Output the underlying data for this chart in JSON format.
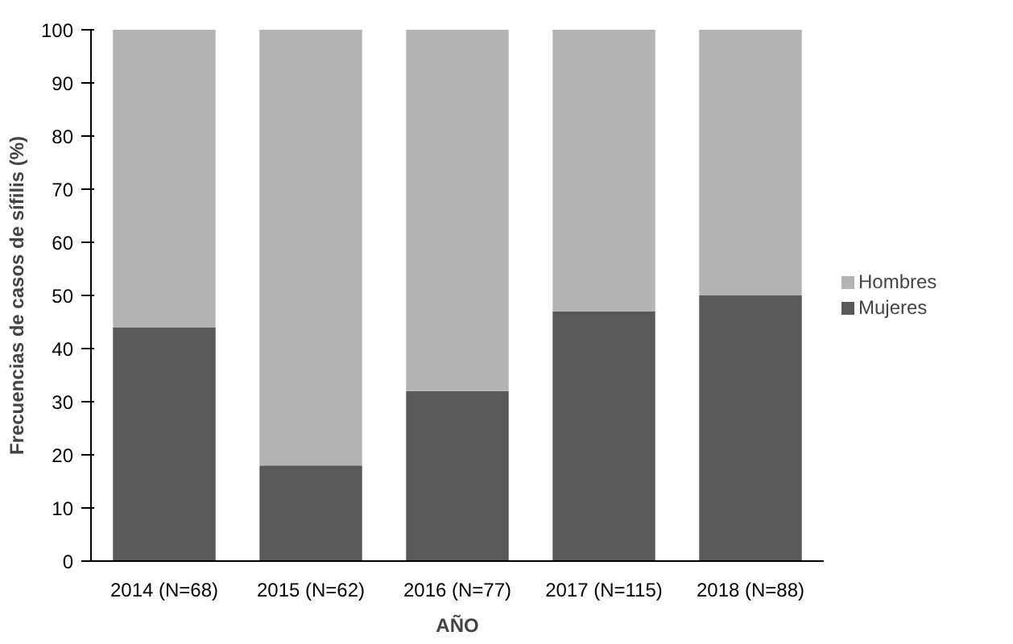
{
  "chart_data": {
    "type": "bar",
    "stacked": true,
    "xlabel": "AÑO",
    "ylabel": "Frecuencias de casos de sífilis (%)",
    "categories": [
      "2014 (N=68)",
      "2015 (N=62)",
      "2016 (N=77)",
      "2017 (N=115)",
      "2018 (N=88)"
    ],
    "series": [
      {
        "name": "Mujeres",
        "color": "#595959",
        "values": [
          44,
          18,
          32,
          47,
          50
        ]
      },
      {
        "name": "Hombres",
        "color": "#b3b3b3",
        "values": [
          56,
          82,
          68,
          53,
          50
        ]
      }
    ],
    "ylim": [
      0,
      100
    ],
    "yticks": [
      0,
      10,
      20,
      30,
      40,
      50,
      60,
      70,
      80,
      90,
      100
    ],
    "grid": false,
    "legend": "right"
  }
}
